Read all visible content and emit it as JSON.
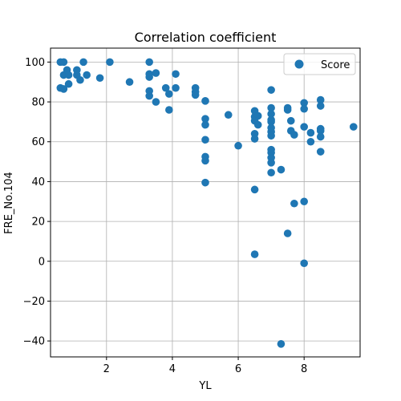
{
  "chart_data": {
    "type": "scatter",
    "title": "Correlation coefficient",
    "xlabel": "YL",
    "ylabel": "FRE_No.104",
    "xlim": [
      0.3,
      9.7
    ],
    "ylim": [
      -48,
      107
    ],
    "xticks": [
      2,
      4,
      6,
      8
    ],
    "yticks": [
      -40,
      -20,
      0,
      20,
      40,
      60,
      80,
      100
    ],
    "xtick_labels": [
      "2",
      "4",
      "6",
      "8"
    ],
    "ytick_labels": [
      "−40",
      "−20",
      "0",
      "20",
      "40",
      "60",
      "80",
      "100"
    ],
    "grid": true,
    "legend": {
      "position": "top-right",
      "entries": [
        "Score"
      ]
    },
    "series": [
      {
        "name": "Score",
        "color": "#1f77b4",
        "points": [
          [
            0.6,
            100
          ],
          [
            0.7,
            100
          ],
          [
            0.8,
            96
          ],
          [
            1.1,
            96
          ],
          [
            1.3,
            100
          ],
          [
            2.1,
            100
          ],
          [
            0.6,
            87
          ],
          [
            0.7,
            86.5
          ],
          [
            0.85,
            89
          ],
          [
            0.7,
            93.5
          ],
          [
            0.85,
            93.5
          ],
          [
            1.1,
            93.5
          ],
          [
            1.2,
            91
          ],
          [
            1.4,
            93.5
          ],
          [
            1.8,
            92
          ],
          [
            2.7,
            90
          ],
          [
            3.3,
            100
          ],
          [
            3.3,
            94
          ],
          [
            3.3,
            92.5
          ],
          [
            3.5,
            94.5
          ],
          [
            4.1,
            94
          ],
          [
            3.3,
            85.5
          ],
          [
            3.3,
            83
          ],
          [
            3.5,
            80
          ],
          [
            3.8,
            87
          ],
          [
            3.9,
            84
          ],
          [
            4.1,
            87
          ],
          [
            3.9,
            76
          ],
          [
            4.7,
            87
          ],
          [
            4.7,
            85
          ],
          [
            4.7,
            83.5
          ],
          [
            5.0,
            80.5
          ],
          [
            5.0,
            71.5
          ],
          [
            5.0,
            68.5
          ],
          [
            5.0,
            61
          ],
          [
            5.0,
            52.5
          ],
          [
            5.0,
            50.5
          ],
          [
            5.0,
            39.5
          ],
          [
            5.7,
            73.5
          ],
          [
            6.0,
            58
          ],
          [
            6.5,
            75.5
          ],
          [
            6.5,
            72.5
          ],
          [
            6.6,
            73
          ],
          [
            6.5,
            70.5
          ],
          [
            6.6,
            68.5
          ],
          [
            6.5,
            64
          ],
          [
            6.5,
            61.5
          ],
          [
            6.5,
            36
          ],
          [
            6.5,
            3.5
          ],
          [
            7.0,
            86
          ],
          [
            7.0,
            77
          ],
          [
            7.0,
            74
          ],
          [
            7.0,
            71
          ],
          [
            7.0,
            70
          ],
          [
            7.0,
            67
          ],
          [
            7.0,
            65
          ],
          [
            7.0,
            63
          ],
          [
            7.0,
            56
          ],
          [
            7.0,
            54.5
          ],
          [
            7.0,
            52
          ],
          [
            7.0,
            49.5
          ],
          [
            7.0,
            44.5
          ],
          [
            7.3,
            46
          ],
          [
            7.5,
            77
          ],
          [
            7.5,
            76
          ],
          [
            7.6,
            70.5
          ],
          [
            7.6,
            65.5
          ],
          [
            7.7,
            63.5
          ],
          [
            7.5,
            14
          ],
          [
            7.7,
            29
          ],
          [
            8.0,
            79.5
          ],
          [
            8.0,
            76.5
          ],
          [
            8.0,
            67.5
          ],
          [
            8.0,
            30
          ],
          [
            8.0,
            -1
          ],
          [
            8.2,
            64.5
          ],
          [
            8.2,
            60
          ],
          [
            8.5,
            81
          ],
          [
            8.5,
            78
          ],
          [
            8.5,
            66.5
          ],
          [
            8.5,
            65.5
          ],
          [
            8.5,
            62.5
          ],
          [
            8.5,
            55
          ],
          [
            9.5,
            67.5
          ],
          [
            7.3,
            -41.5
          ]
        ]
      }
    ]
  }
}
